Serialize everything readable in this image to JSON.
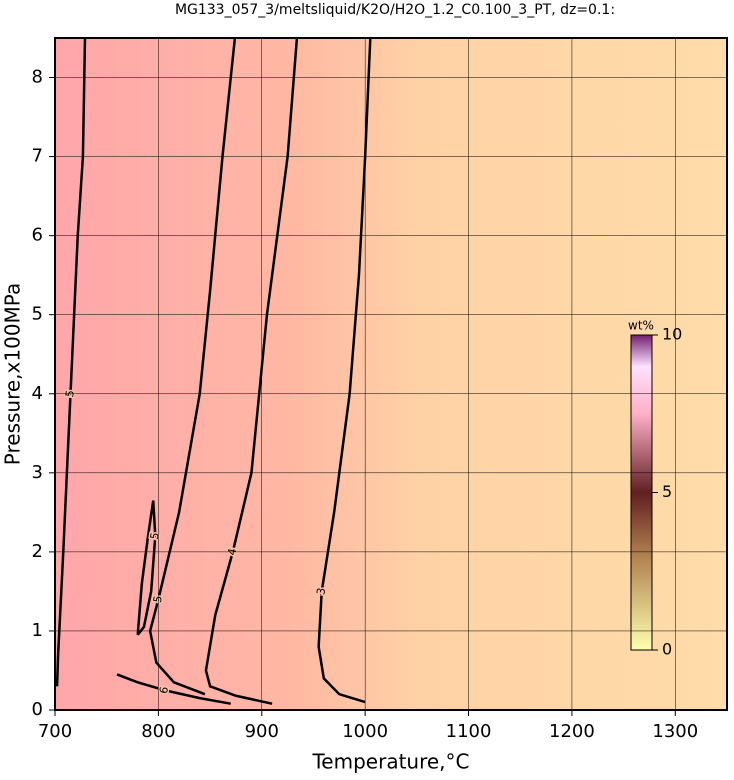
{
  "chart_data": {
    "type": "contour",
    "title": "MG133_057_3/meltsliquid/K2O/H2O_1.2_C0.100_3_PT, dz=0.1:",
    "xlabel": "Temperature,°C",
    "ylabel": "Pressure,x100MPa",
    "xlim": [
      700,
      1350
    ],
    "ylim": [
      0,
      8.5
    ],
    "xticks": [
      700,
      800,
      900,
      1000,
      1100,
      1200,
      1300
    ],
    "yticks": [
      0,
      1,
      2,
      3,
      4,
      5,
      6,
      7,
      8
    ],
    "grid": true,
    "contours": [
      {
        "level": 3,
        "x": [
          1005,
          1000,
          994,
          985,
          970,
          958,
          955,
          960,
          975,
          1000
        ],
        "y": [
          8.5,
          7,
          5.5,
          4,
          2.5,
          1.5,
          0.8,
          0.4,
          0.2,
          0.1
        ]
      },
      {
        "level": 4,
        "x": [
          934,
          925,
          915,
          905,
          890,
          872,
          855,
          846,
          850,
          875,
          910
        ],
        "y": [
          8.5,
          7,
          6,
          5,
          3,
          2,
          1.2,
          0.5,
          0.3,
          0.18,
          0.08
        ]
      },
      {
        "level": 5,
        "x": [
          874,
          862,
          850,
          840,
          820,
          800,
          792,
          798,
          815,
          845
        ],
        "y": [
          8.5,
          7,
          5.3,
          4,
          2.5,
          1.4,
          1.0,
          0.6,
          0.35,
          0.2
        ]
      },
      {
        "level": 5,
        "x": [
          729,
          727,
          722,
          715,
          708,
          703,
          702
        ],
        "y": [
          8.5,
          7,
          6,
          4,
          2,
          0.7,
          0.3
        ]
      },
      {
        "level": 5,
        "x": [
          780,
          784,
          790,
          795,
          797,
          793,
          786,
          780
        ],
        "y": [
          0.95,
          1.6,
          2.2,
          2.65,
          2.2,
          1.5,
          1.05,
          0.95
        ]
      },
      {
        "level": 6,
        "x": [
          760,
          780,
          806,
          840,
          870
        ],
        "y": [
          0.45,
          0.35,
          0.25,
          0.15,
          0.08
        ]
      }
    ],
    "colorbar": {
      "label": "wt%",
      "clim": [
        0,
        10
      ],
      "cticks": [
        0,
        5,
        10
      ]
    }
  }
}
